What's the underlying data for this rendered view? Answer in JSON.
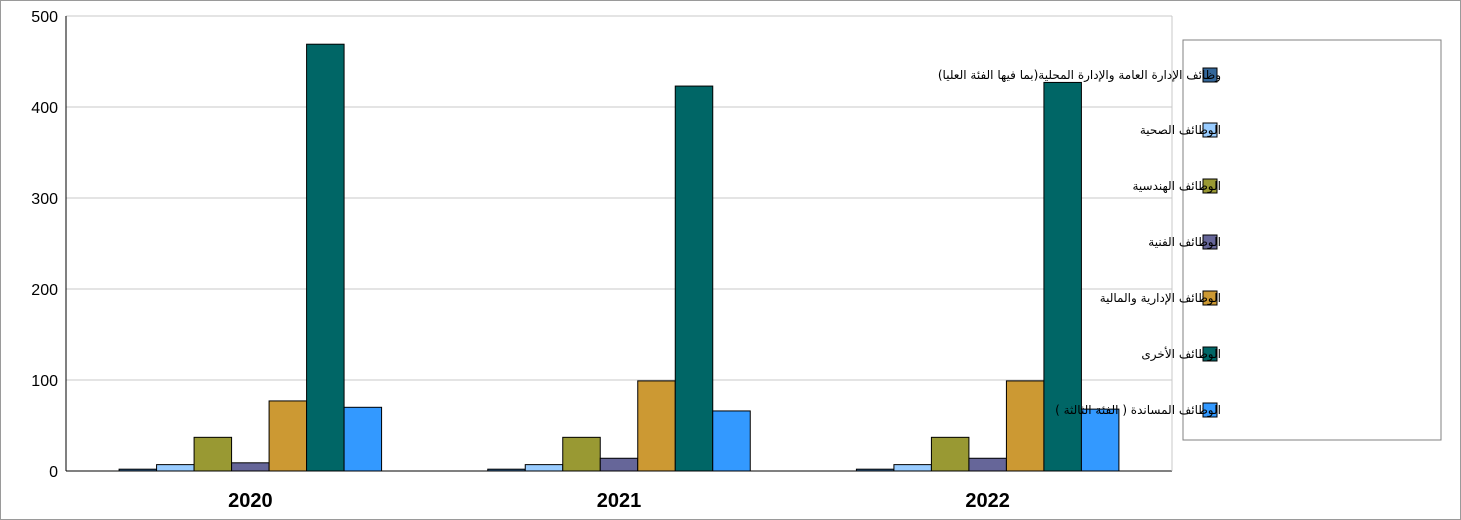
{
  "chart_data": {
    "type": "bar",
    "title": "",
    "xlabel": "",
    "ylabel": "",
    "ylim": [
      0,
      500
    ],
    "yticks": [
      0,
      100,
      200,
      300,
      400,
      500
    ],
    "grid": true,
    "legend_position": "right",
    "categories": [
      "2020",
      "2021",
      "2022"
    ],
    "series": [
      {
        "name": "وظائف الإدارة العامة والإدارة المحلية(بما فيها الفئة العليا)",
        "color": "#336699",
        "values": [
          2,
          2,
          2
        ]
      },
      {
        "name": "الوظائف الصحية",
        "color": "#99ccff",
        "values": [
          7,
          7,
          7
        ]
      },
      {
        "name": "الوظائف الهندسية",
        "color": "#999933",
        "values": [
          37,
          37,
          37
        ]
      },
      {
        "name": "الوظائف الفنية",
        "color": "#666699",
        "values": [
          9,
          14,
          14
        ]
      },
      {
        "name": "الوظائف الإدارية والمالية",
        "color": "#cc9933",
        "values": [
          77,
          99,
          99
        ]
      },
      {
        "name": "الوظائف الأخرى",
        "color": "#006666",
        "values": [
          469,
          423,
          427
        ]
      },
      {
        "name": "الوظائف المساندة ( الفئة الثالثة )",
        "color": "#3399ff",
        "values": [
          70,
          66,
          68
        ]
      }
    ]
  }
}
